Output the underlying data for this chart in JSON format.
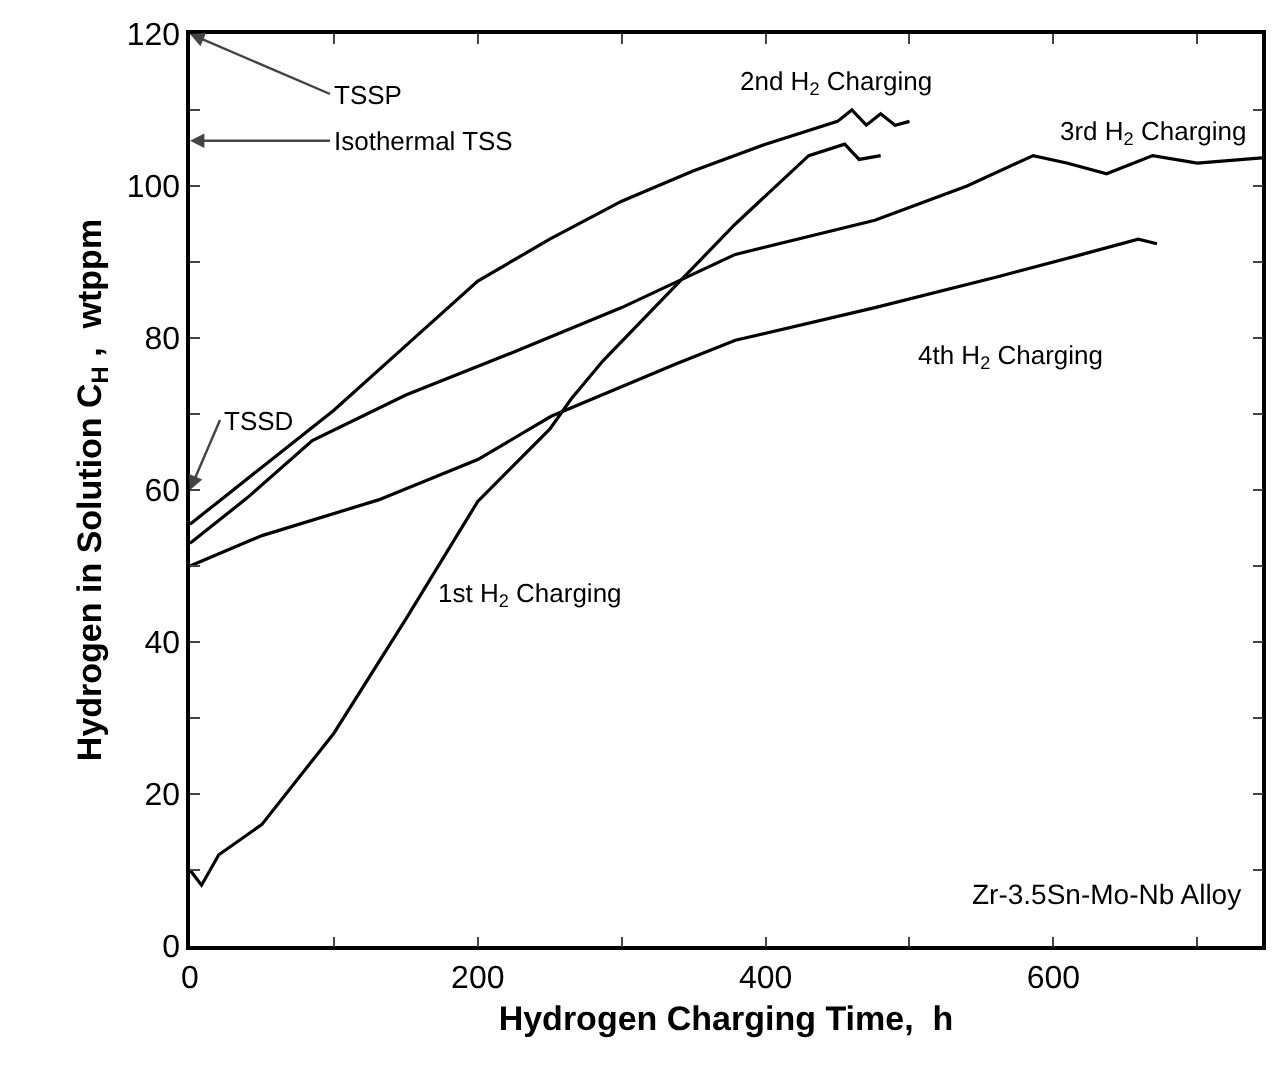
{
  "chart_data": {
    "type": "line",
    "xlabel": "Hydrogen Charging Time,  h",
    "ylabel": "Hydrogen in Solution C$_{H}$ ,  wtppm",
    "xlim": [
      0,
      745
    ],
    "xticks": [
      0,
      {
        "value": 100,
        "label": null
      },
      200,
      {
        "value": 300,
        "label": null
      },
      400,
      {
        "value": 500,
        "label": null
      },
      600,
      {
        "value": 700,
        "label": null
      }
    ],
    "ylim": [
      0,
      120
    ],
    "yticks": [
      0,
      {
        "value": 10,
        "label": null
      },
      20,
      {
        "value": 30,
        "label": null
      },
      40,
      {
        "value": 50,
        "label": null
      },
      60,
      {
        "value": 70,
        "label": null
      },
      80,
      {
        "value": 90,
        "label": null
      },
      100,
      {
        "value": 110,
        "label": null
      },
      120
    ],
    "grid": false,
    "legend": false,
    "marker": "none",
    "line_style": "solid",
    "series": [
      {
        "name": "1st H$_{2}$ Charging",
        "color": "#000000",
        "x": [
          0,
          8,
          20,
          50,
          100,
          150,
          200,
          250,
          265,
          287,
          338,
          379,
          430,
          455,
          465,
          480
        ],
        "values": [
          10,
          8,
          12,
          16,
          28,
          43,
          58.5,
          68,
          72,
          77,
          87,
          95,
          104,
          105.5,
          103.5,
          104
        ]
      },
      {
        "name": "2nd H$_{2}$ Charging",
        "color": "#000000",
        "x": [
          0,
          20,
          50,
          100,
          150,
          200,
          250,
          300,
          350,
          400,
          450,
          460,
          470,
          480,
          490,
          500
        ],
        "values": [
          55.5,
          58.5,
          63,
          70.5,
          79,
          87.5,
          93,
          98,
          102,
          105.5,
          108.5,
          110,
          108,
          109.5,
          108,
          108.5
        ]
      },
      {
        "name": "3rd H$_{2}$ Charging",
        "color": "#000000",
        "x": [
          0,
          40,
          85,
          150,
          223,
          300,
          379,
          476,
          540,
          586,
          610,
          637,
          669,
          700,
          745
        ],
        "values": [
          53,
          59,
          66.5,
          72.5,
          78,
          84,
          91,
          95.5,
          100,
          104,
          103,
          101.6,
          104,
          103,
          103.7
        ]
      },
      {
        "name": "4th H$_{2}$ Charging",
        "color": "#000000",
        "x": [
          0,
          50,
          131,
          200,
          251,
          338,
          379,
          476,
          560,
          620,
          659,
          672
        ],
        "values": [
          50,
          54,
          58.7,
          64,
          69.7,
          76.6,
          79.7,
          84,
          88,
          91,
          93,
          92.4
        ]
      }
    ],
    "annotations": [
      "TSSP",
      "Isothermal TSS",
      "TSSD",
      "Zr-3.5Sn-Mo-Nb Alloy"
    ]
  }
}
